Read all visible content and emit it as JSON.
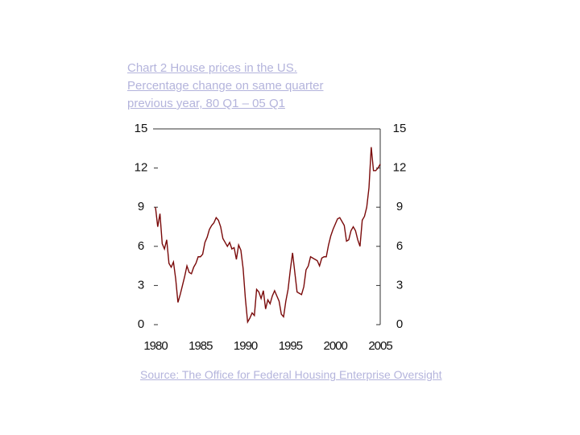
{
  "chart_data": {
    "type": "line",
    "title": "Chart 2 House prices in the US.",
    "subtitle": [
      "Percentage change on same quarter",
      "previous year, 80 Q1 – 05 Q1"
    ],
    "source": "Source: The Office for Federal Housing Enterprise Oversight",
    "x": [
      1980,
      1980.25,
      1980.5,
      1980.75,
      1981,
      1981.25,
      1981.5,
      1981.75,
      1982,
      1982.25,
      1982.5,
      1982.75,
      1983,
      1983.25,
      1983.5,
      1983.75,
      1984,
      1984.25,
      1984.5,
      1984.75,
      1985,
      1985.25,
      1985.5,
      1985.75,
      1986,
      1986.25,
      1986.5,
      1986.75,
      1987,
      1987.25,
      1987.5,
      1987.75,
      1988,
      1988.25,
      1988.5,
      1988.75,
      1989,
      1989.25,
      1989.5,
      1989.75,
      1990,
      1990.25,
      1990.5,
      1990.75,
      1991,
      1991.25,
      1991.5,
      1991.75,
      1992,
      1992.25,
      1992.5,
      1992.75,
      1993,
      1993.25,
      1993.5,
      1993.75,
      1994,
      1994.25,
      1994.5,
      1994.75,
      1995,
      1995.25,
      1995.5,
      1995.75,
      1996,
      1996.25,
      1996.5,
      1996.75,
      1997,
      1997.25,
      1997.5,
      1997.75,
      1998,
      1998.25,
      1998.5,
      1998.75,
      1999,
      1999.25,
      1999.5,
      1999.75,
      2000,
      2000.25,
      2000.5,
      2000.75,
      2001,
      2001.25,
      2001.5,
      2001.75,
      2002,
      2002.25,
      2002.5,
      2002.75,
      2003,
      2003.25,
      2003.5,
      2003.75,
      2004,
      2004.25,
      2004.5,
      2004.75,
      2005
    ],
    "series": [
      {
        "name": "House prices",
        "color": "#7a0a0a",
        "values": [
          9.0,
          7.5,
          8.5,
          6.2,
          5.8,
          6.5,
          4.7,
          4.4,
          4.8,
          3.5,
          1.7,
          2.3,
          3.0,
          3.7,
          4.5,
          4.0,
          3.9,
          4.4,
          4.7,
          5.2,
          5.2,
          5.4,
          6.3,
          6.7,
          7.3,
          7.6,
          7.8,
          8.2,
          8.0,
          7.5,
          6.6,
          6.3,
          6.0,
          6.3,
          5.8,
          5.9,
          5.0,
          6.1,
          5.7,
          4.3,
          2.0,
          0.2,
          0.5,
          0.9,
          0.7,
          2.7,
          2.5,
          2.0,
          2.6,
          1.2,
          1.9,
          1.6,
          2.2,
          2.6,
          2.2,
          1.8,
          0.8,
          0.6,
          1.8,
          2.7,
          4.2,
          5.5,
          4.0,
          2.5,
          2.4,
          2.3,
          2.9,
          4.2,
          4.5,
          5.2,
          5.1,
          5.0,
          4.9,
          4.5,
          5.1,
          5.2,
          5.2,
          6.1,
          6.8,
          7.3,
          7.7,
          8.1,
          8.2,
          7.9,
          7.6,
          6.4,
          6.5,
          7.2,
          7.5,
          7.2,
          6.5,
          6.0,
          8.0,
          8.3,
          9.0,
          10.5,
          13.6,
          11.8,
          11.8,
          12.0,
          12.3
        ]
      }
    ],
    "xlim": [
      1980,
      2005
    ],
    "xticks": [
      1980,
      1985,
      1990,
      1995,
      2000,
      2005
    ],
    "ylim": [
      0,
      15
    ],
    "yticks": [
      0,
      3,
      6,
      9,
      12,
      15
    ],
    "y2lim": [
      0,
      15
    ],
    "y2ticks": [
      0,
      3,
      6,
      9,
      12,
      15
    ]
  }
}
